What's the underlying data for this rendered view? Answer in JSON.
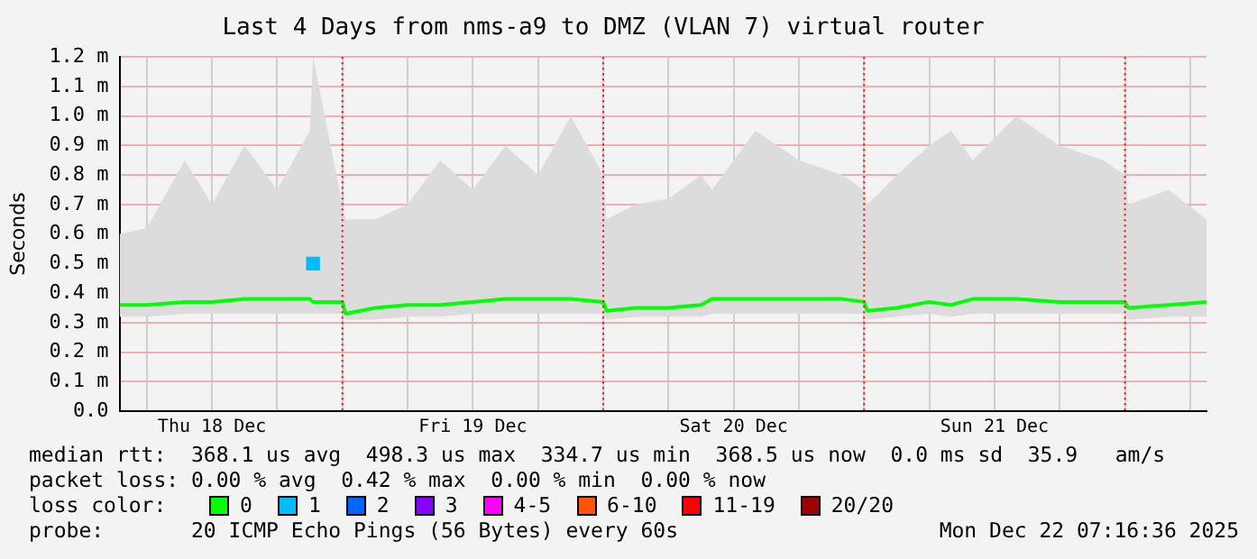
{
  "chart_data": {
    "type": "line",
    "title": "Last 4 Days from nms-a9 to DMZ (VLAN 7) virtual router",
    "ylabel": "Seconds",
    "legend_title": "loss color:",
    "legend": "bottom",
    "grid": true,
    "marker": "none",
    "line_style": "solid",
    "x": [
      "2025-12-18T03:30",
      "2025-12-18T06:00",
      "2025-12-18T09:30",
      "2025-12-18T12:00",
      "2025-12-18T15:00",
      "2025-12-18T18:00",
      "2025-12-18T21:00",
      "2025-12-18T21:18",
      "2025-12-19T00:00",
      "2025-12-19T00:18",
      "2025-12-19T03:00",
      "2025-12-19T06:00",
      "2025-12-19T09:00",
      "2025-12-19T12:00",
      "2025-12-19T15:00",
      "2025-12-19T18:00",
      "2025-12-19T21:00",
      "2025-12-20T00:00",
      "2025-12-20T00:18",
      "2025-12-20T03:00",
      "2025-12-20T06:00",
      "2025-12-20T09:00",
      "2025-12-20T10:00",
      "2025-12-20T14:00",
      "2025-12-20T18:00",
      "2025-12-20T22:00",
      "2025-12-21T00:00",
      "2025-12-21T00:18",
      "2025-12-21T03:00",
      "2025-12-21T06:00",
      "2025-12-21T08:00",
      "2025-12-21T10:00",
      "2025-12-21T14:00",
      "2025-12-21T18:00",
      "2025-12-21T22:00",
      "2025-12-22T00:00",
      "2025-12-22T00:18",
      "2025-12-22T04:00",
      "2025-12-22T07:30"
    ],
    "xlim": [
      "2025-12-18T03:30",
      "2025-12-22T07:30"
    ],
    "xticks": [
      {
        "value": "2025-12-18T06:00",
        "label": null
      },
      {
        "value": "2025-12-18T12:00",
        "label": "Thu 18 Dec"
      },
      {
        "value": "2025-12-18T18:00",
        "label": null
      },
      {
        "value": "2025-12-19T00:00",
        "label": null
      },
      {
        "value": "2025-12-19T06:00",
        "label": null
      },
      {
        "value": "2025-12-19T12:00",
        "label": "Fri 19 Dec"
      },
      {
        "value": "2025-12-19T18:00",
        "label": null
      },
      {
        "value": "2025-12-20T00:00",
        "label": null
      },
      {
        "value": "2025-12-20T06:00",
        "label": null
      },
      {
        "value": "2025-12-20T12:00",
        "label": "Sat 20 Dec"
      },
      {
        "value": "2025-12-20T18:00",
        "label": null
      },
      {
        "value": "2025-12-21T00:00",
        "label": null
      },
      {
        "value": "2025-12-21T06:00",
        "label": null
      },
      {
        "value": "2025-12-21T12:00",
        "label": "Sun 21 Dec"
      },
      {
        "value": "2025-12-21T18:00",
        "label": null
      },
      {
        "value": "2025-12-22T00:00",
        "label": null
      },
      {
        "value": "2025-12-22T06:00",
        "label": null
      }
    ],
    "ylim": [
      0,
      1.2
    ],
    "yticks": [
      {
        "value": 0,
        "label": "0.0"
      },
      {
        "value": 0.1,
        "label": "0.1 m"
      },
      {
        "value": 0.2,
        "label": "0.2 m"
      },
      {
        "value": 0.3,
        "label": "0.3 m"
      },
      {
        "value": 0.4,
        "label": "0.4 m"
      },
      {
        "value": 0.5,
        "label": "0.5 m"
      },
      {
        "value": 0.6,
        "label": "0.6 m"
      },
      {
        "value": 0.7,
        "label": "0.7 m"
      },
      {
        "value": 0.8,
        "label": "0.8 m"
      },
      {
        "value": 0.9,
        "label": "0.9 m"
      },
      {
        "value": 1.0,
        "label": "1.0 m"
      },
      {
        "value": 1.1,
        "label": "1.1 m"
      },
      {
        "value": 1.2,
        "label": "1.2 m"
      }
    ],
    "ref_lines": [
      {
        "axis": "x",
        "value": "2025-12-19T00:00",
        "color": "#ff0000",
        "line_style": "dotted"
      },
      {
        "axis": "x",
        "value": "2025-12-20T00:00",
        "color": "#ff0000",
        "line_style": "dotted"
      },
      {
        "axis": "x",
        "value": "2025-12-21T00:00",
        "color": "#ff0000",
        "line_style": "dotted"
      },
      {
        "axis": "x",
        "value": "2025-12-22T00:00",
        "color": "#ff0000",
        "line_style": "dotted"
      }
    ],
    "series": [
      {
        "name": "0",
        "color": "#00ff00",
        "values": [
          0.36,
          0.36,
          0.37,
          0.37,
          0.38,
          0.38,
          0.38,
          0.37,
          0.37,
          0.33,
          0.35,
          0.36,
          0.36,
          0.37,
          0.38,
          0.38,
          0.38,
          0.37,
          0.34,
          0.35,
          0.35,
          0.36,
          0.38,
          0.38,
          0.38,
          0.38,
          0.37,
          0.34,
          0.35,
          0.37,
          0.36,
          0.38,
          0.38,
          0.37,
          0.37,
          0.37,
          0.35,
          0.36,
          0.37
        ],
        "lower": [
          0.32,
          0.32,
          0.33,
          0.33,
          0.33,
          0.33,
          0.33,
          0.33,
          0.33,
          0.31,
          0.31,
          0.32,
          0.32,
          0.33,
          0.33,
          0.33,
          0.33,
          0.33,
          0.31,
          0.32,
          0.32,
          0.32,
          0.33,
          0.33,
          0.33,
          0.33,
          0.33,
          0.31,
          0.32,
          0.33,
          0.32,
          0.33,
          0.33,
          0.33,
          0.33,
          0.33,
          0.31,
          0.32,
          0.32
        ],
        "upper": [
          0.6,
          0.62,
          0.85,
          0.7,
          0.9,
          0.75,
          0.95,
          1.2,
          0.7,
          0.65,
          0.65,
          0.7,
          0.85,
          0.75,
          0.9,
          0.8,
          1.0,
          0.8,
          0.65,
          0.7,
          0.72,
          0.8,
          0.75,
          0.95,
          0.85,
          0.8,
          0.75,
          0.7,
          0.8,
          0.9,
          0.95,
          0.85,
          1.0,
          0.9,
          0.85,
          0.8,
          0.7,
          0.75,
          0.65
        ]
      },
      {
        "name": "1",
        "color": "#00bbff",
        "marker": "square",
        "values": [
          null,
          null,
          null,
          null,
          null,
          null,
          null,
          0.5,
          null,
          null,
          null,
          null,
          null,
          null,
          null,
          null,
          null,
          null,
          null,
          null,
          null,
          null,
          null,
          null,
          null,
          null,
          null,
          null,
          null,
          null,
          null,
          null,
          null,
          null,
          null,
          null,
          null,
          null,
          null
        ]
      },
      {
        "name": "2",
        "color": "#0066ff",
        "values": [
          null,
          null,
          null,
          null,
          null,
          null,
          null,
          null,
          null,
          null,
          null,
          null,
          null,
          null,
          null,
          null,
          null,
          null,
          null,
          null,
          null,
          null,
          null,
          null,
          null,
          null,
          null,
          null,
          null,
          null,
          null,
          null,
          null,
          null,
          null,
          null,
          null,
          null,
          null
        ]
      },
      {
        "name": "3",
        "color": "#8800ff",
        "values": [
          null,
          null,
          null,
          null,
          null,
          null,
          null,
          null,
          null,
          null,
          null,
          null,
          null,
          null,
          null,
          null,
          null,
          null,
          null,
          null,
          null,
          null,
          null,
          null,
          null,
          null,
          null,
          null,
          null,
          null,
          null,
          null,
          null,
          null,
          null,
          null,
          null,
          null,
          null
        ]
      },
      {
        "name": "4-5",
        "color": "#ff00ff",
        "values": [
          null,
          null,
          null,
          null,
          null,
          null,
          null,
          null,
          null,
          null,
          null,
          null,
          null,
          null,
          null,
          null,
          null,
          null,
          null,
          null,
          null,
          null,
          null,
          null,
          null,
          null,
          null,
          null,
          null,
          null,
          null,
          null,
          null,
          null,
          null,
          null,
          null,
          null,
          null
        ]
      },
      {
        "name": "6-10",
        "color": "#ff5500",
        "values": [
          null,
          null,
          null,
          null,
          null,
          null,
          null,
          null,
          null,
          null,
          null,
          null,
          null,
          null,
          null,
          null,
          null,
          null,
          null,
          null,
          null,
          null,
          null,
          null,
          null,
          null,
          null,
          null,
          null,
          null,
          null,
          null,
          null,
          null,
          null,
          null,
          null,
          null,
          null
        ]
      },
      {
        "name": "11-19",
        "color": "#ff0000",
        "values": [
          null,
          null,
          null,
          null,
          null,
          null,
          null,
          null,
          null,
          null,
          null,
          null,
          null,
          null,
          null,
          null,
          null,
          null,
          null,
          null,
          null,
          null,
          null,
          null,
          null,
          null,
          null,
          null,
          null,
          null,
          null,
          null,
          null,
          null,
          null,
          null,
          null,
          null,
          null
        ]
      },
      {
        "name": "20/20",
        "color": "#a10000",
        "values": [
          null,
          null,
          null,
          null,
          null,
          null,
          null,
          null,
          null,
          null,
          null,
          null,
          null,
          null,
          null,
          null,
          null,
          null,
          null,
          null,
          null,
          null,
          null,
          null,
          null,
          null,
          null,
          null,
          null,
          null,
          null,
          null,
          null,
          null,
          null,
          null,
          null,
          null,
          null
        ]
      }
    ],
    "annotations": [
      "median rtt:  368.1 us avg  498.3 us max  334.7 us min  368.5 us now  0.0 ms sd  35.9   am/s",
      "packet loss: 0.00 % avg  0.42 % max  0.00 % min  0.00 % now",
      "probe:       20 ICMP Echo Pings (56 Bytes) every 60s",
      "Mon Dec 22 07:16:36 2025"
    ]
  }
}
